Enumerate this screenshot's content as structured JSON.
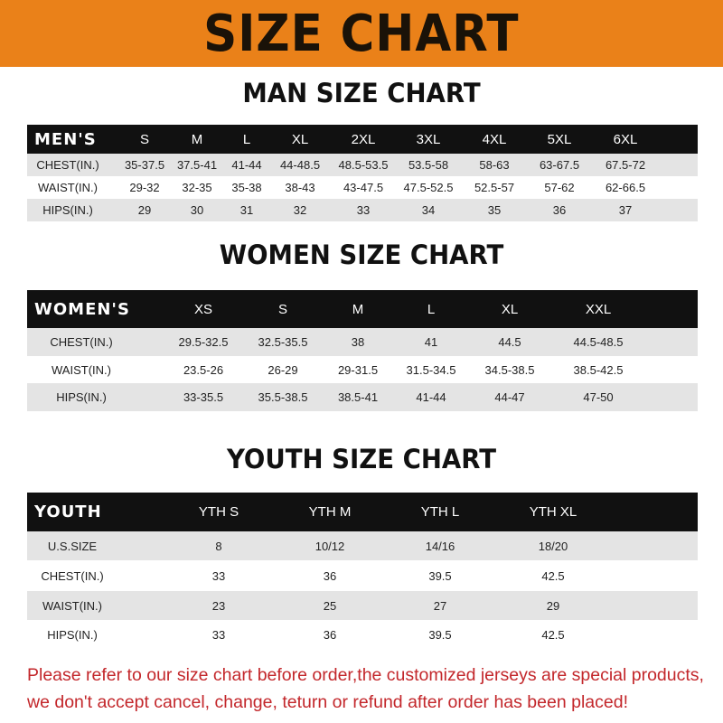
{
  "banner": {
    "title": "SIZE CHART",
    "color": "#ea8119"
  },
  "men": {
    "title": "MAN SIZE CHART",
    "header": [
      "MEN'S",
      "S",
      "M",
      "L",
      "XL",
      "2XL",
      "3XL",
      "4XL",
      "5XL",
      "6XL"
    ],
    "rows": [
      [
        "CHEST(IN.)",
        "35-37.5",
        "37.5-41",
        "41-44",
        "44-48.5",
        "48.5-53.5",
        "53.5-58",
        "58-63",
        "63-67.5",
        "67.5-72"
      ],
      [
        "WAIST(IN.)",
        "29-32",
        "32-35",
        "35-38",
        "38-43",
        "43-47.5",
        "47.5-52.5",
        "52.5-57",
        "57-62",
        "62-66.5"
      ],
      [
        "HIPS(IN.)",
        "29",
        "30",
        "31",
        "32",
        "33",
        "34",
        "35",
        "36",
        "37"
      ]
    ]
  },
  "women": {
    "title": "WOMEN SIZE CHART",
    "header": [
      "WOMEN'S",
      "XS",
      "S",
      "M",
      "L",
      "XL",
      "XXL"
    ],
    "rows": [
      [
        "CHEST(IN.)",
        "29.5-32.5",
        "32.5-35.5",
        "38",
        "41",
        "44.5",
        "44.5-48.5"
      ],
      [
        "WAIST(IN.)",
        "23.5-26",
        "26-29",
        "29-31.5",
        "31.5-34.5",
        "34.5-38.5",
        "38.5-42.5"
      ],
      [
        "HIPS(IN.)",
        "33-35.5",
        "35.5-38.5",
        "38.5-41",
        "41-44",
        "44-47",
        "47-50"
      ]
    ]
  },
  "youth": {
    "title": "YOUTH SIZE CHART",
    "header": [
      "YOUTH",
      "YTH S",
      "YTH M",
      "YTH L",
      "YTH XL"
    ],
    "rows": [
      [
        "U.S.SIZE",
        "8",
        "10/12",
        "14/16",
        "18/20"
      ],
      [
        "CHEST(IN.)",
        "33",
        "36",
        "39.5",
        "42.5"
      ],
      [
        "WAIST(IN.)",
        "23",
        "25",
        "27",
        "29"
      ],
      [
        "HIPS(IN.)",
        "33",
        "36",
        "39.5",
        "42.5"
      ]
    ]
  },
  "note": {
    "line1": "Please refer to our size chart before order,the customized jerseys are special products,",
    "line2": "we don't accept cancel, change, teturn or refund after order has been placed!",
    "color": "#c3272b"
  }
}
